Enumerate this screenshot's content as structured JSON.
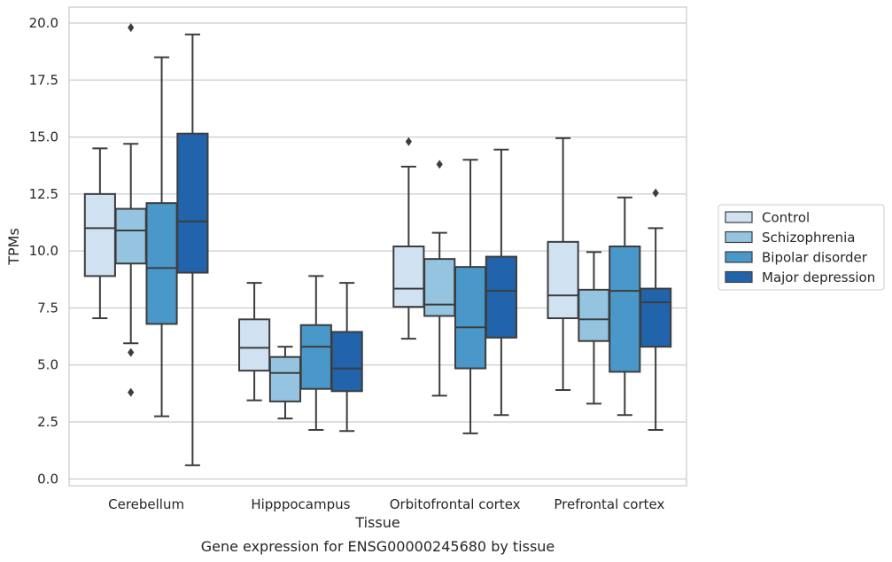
{
  "chart_data": {
    "type": "box",
    "xlabel": "Tissue",
    "ylabel": "TPMs",
    "caption": "Gene expression for ENSG00000245680 by tissue",
    "ylim": [
      -0.3,
      20.7
    ],
    "yticks": [
      "0.0",
      "2.5",
      "5.0",
      "7.5",
      "10.0",
      "12.5",
      "15.0",
      "17.5",
      "20.0"
    ],
    "ytick_values": [
      0,
      2.5,
      5,
      7.5,
      10,
      12.5,
      15,
      17.5,
      20
    ],
    "grid": true,
    "legend_position": "right",
    "categories": [
      "Cerebellum",
      "Hipppocampus",
      "Orbitofrontal cortex",
      "Prefrontal cortex"
    ],
    "series": [
      {
        "name": "Control",
        "color": "#d0e1f2",
        "boxes": [
          {
            "whisker_low": 7.05,
            "q1": 8.9,
            "median": 11.0,
            "q3": 12.5,
            "whisker_high": 14.5,
            "outliers": []
          },
          {
            "whisker_low": 3.45,
            "q1": 4.75,
            "median": 5.75,
            "q3": 7.0,
            "whisker_high": 8.6,
            "outliers": []
          },
          {
            "whisker_low": 6.15,
            "q1": 7.55,
            "median": 8.35,
            "q3": 10.2,
            "whisker_high": 13.7,
            "outliers": [
              14.8
            ]
          },
          {
            "whisker_low": 3.9,
            "q1": 7.05,
            "median": 8.05,
            "q3": 10.4,
            "whisker_high": 14.95,
            "outliers": []
          }
        ]
      },
      {
        "name": "Schizophrenia",
        "color": "#94c4df",
        "boxes": [
          {
            "whisker_low": 5.95,
            "q1": 9.45,
            "median": 10.9,
            "q3": 11.85,
            "whisker_high": 14.7,
            "outliers": [
              5.55,
              3.8,
              19.8
            ]
          },
          {
            "whisker_low": 2.65,
            "q1": 3.4,
            "median": 4.65,
            "q3": 5.35,
            "whisker_high": 5.8,
            "outliers": []
          },
          {
            "whisker_low": 3.65,
            "q1": 7.15,
            "median": 7.65,
            "q3": 9.65,
            "whisker_high": 10.8,
            "outliers": [
              13.8
            ]
          },
          {
            "whisker_low": 3.3,
            "q1": 6.05,
            "median": 7.0,
            "q3": 8.3,
            "whisker_high": 9.95,
            "outliers": []
          }
        ]
      },
      {
        "name": "Bipolar disorder",
        "color": "#4a98c9",
        "boxes": [
          {
            "whisker_low": 2.75,
            "q1": 6.8,
            "median": 9.25,
            "q3": 12.1,
            "whisker_high": 18.5,
            "outliers": []
          },
          {
            "whisker_low": 2.15,
            "q1": 3.95,
            "median": 5.8,
            "q3": 6.75,
            "whisker_high": 8.9,
            "outliers": []
          },
          {
            "whisker_low": 2.0,
            "q1": 4.85,
            "median": 6.65,
            "q3": 9.3,
            "whisker_high": 14.0,
            "outliers": []
          },
          {
            "whisker_low": 2.8,
            "q1": 4.7,
            "median": 8.25,
            "q3": 10.2,
            "whisker_high": 12.35,
            "outliers": []
          }
        ]
      },
      {
        "name": "Major depression",
        "color": "#2164ab",
        "boxes": [
          {
            "whisker_low": 0.6,
            "q1": 9.05,
            "median": 11.3,
            "q3": 15.15,
            "whisker_high": 19.5,
            "outliers": []
          },
          {
            "whisker_low": 2.1,
            "q1": 3.85,
            "median": 4.85,
            "q3": 6.45,
            "whisker_high": 8.6,
            "outliers": []
          },
          {
            "whisker_low": 2.8,
            "q1": 6.2,
            "median": 8.25,
            "q3": 9.75,
            "whisker_high": 14.45,
            "outliers": []
          },
          {
            "whisker_low": 2.15,
            "q1": 5.8,
            "median": 7.75,
            "q3": 8.35,
            "whisker_high": 11.0,
            "outliers": [
              12.55
            ]
          }
        ]
      }
    ]
  }
}
